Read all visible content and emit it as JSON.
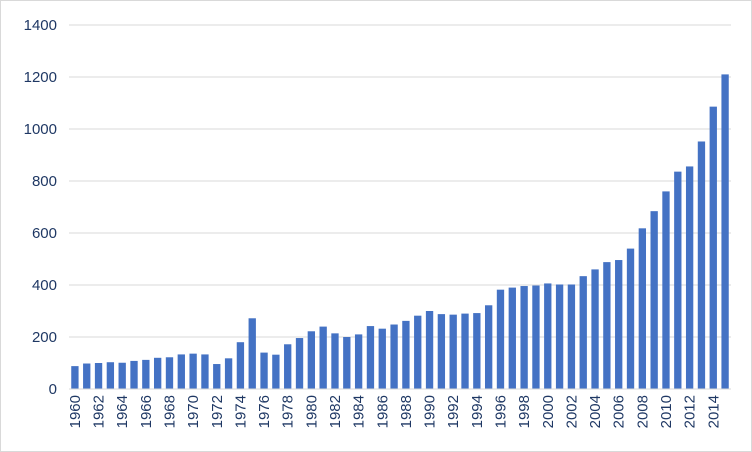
{
  "chart_data": {
    "type": "bar",
    "title": "",
    "xlabel": "",
    "ylabel": "",
    "ylim": [
      0,
      1400
    ],
    "yticks": [
      0,
      200,
      400,
      600,
      800,
      1000,
      1200,
      1400
    ],
    "grid": "horizontal",
    "legend": "none",
    "bar_color": "#4472c4",
    "categories": [
      "1960",
      "1961",
      "1962",
      "1963",
      "1964",
      "1965",
      "1966",
      "1967",
      "1968",
      "1969",
      "1970",
      "1971",
      "1972",
      "1973",
      "1974",
      "1975",
      "1976",
      "1977",
      "1978",
      "1979",
      "1980",
      "1981",
      "1982",
      "1983",
      "1984",
      "1985",
      "1986",
      "1987",
      "1988",
      "1989",
      "1990",
      "1991",
      "1992",
      "1993",
      "1994",
      "1995",
      "1996",
      "1997",
      "1998",
      "1999",
      "2000",
      "2001",
      "2002",
      "2003",
      "2004",
      "2005",
      "2006",
      "2007",
      "2008",
      "2009",
      "2010",
      "2011",
      "2012",
      "2013",
      "2014",
      "2015"
    ],
    "xtick_labels": [
      "1960",
      "1962",
      "1964",
      "1966",
      "1968",
      "1970",
      "1972",
      "1974",
      "1976",
      "1978",
      "1980",
      "1982",
      "1984",
      "1986",
      "1988",
      "1990",
      "1992",
      "1994",
      "1996",
      "1998",
      "2000",
      "2002",
      "2004",
      "2006",
      "2008",
      "2010",
      "2012",
      "2014"
    ],
    "values": [
      88,
      98,
      100,
      103,
      101,
      108,
      112,
      120,
      122,
      133,
      136,
      133,
      96,
      118,
      180,
      272,
      140,
      132,
      172,
      196,
      222,
      240,
      214,
      200,
      210,
      242,
      232,
      248,
      262,
      282,
      300,
      288,
      286,
      290,
      292,
      322,
      382,
      390,
      396,
      398,
      406,
      402,
      402,
      434,
      460,
      488,
      496,
      540,
      618,
      684,
      760,
      836,
      856,
      952,
      1086,
      1210
    ]
  }
}
